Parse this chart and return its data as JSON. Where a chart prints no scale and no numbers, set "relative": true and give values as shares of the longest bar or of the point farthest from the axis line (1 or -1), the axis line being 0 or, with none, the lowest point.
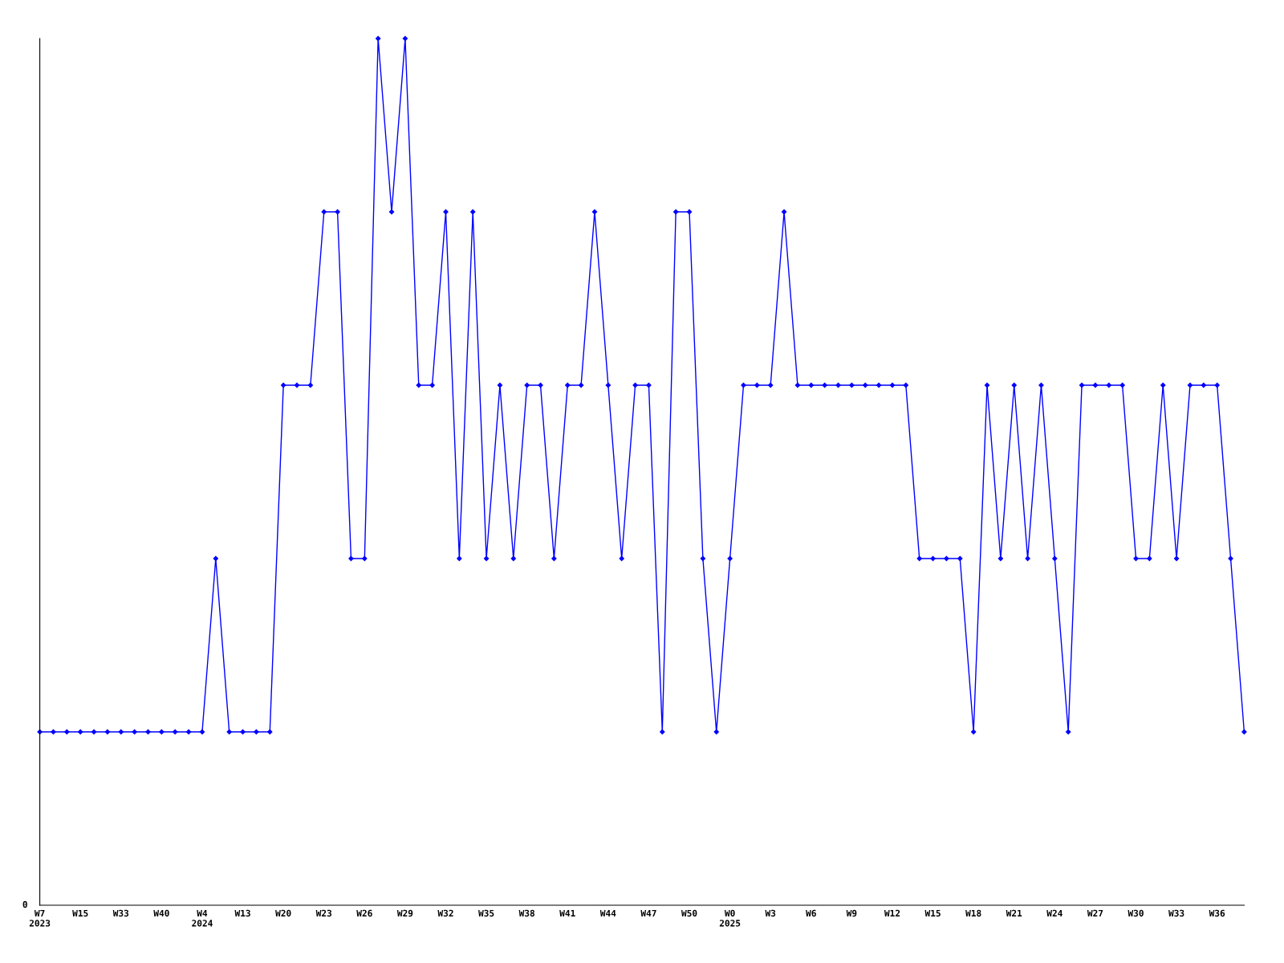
{
  "chart_data": {
    "type": "line",
    "relative": true,
    "marker": "diamond",
    "line_style": "solid",
    "grid": false,
    "legend": false,
    "categories": [
      "W7\n2023",
      null,
      null,
      "W15",
      null,
      null,
      "W33",
      null,
      null,
      "W40",
      null,
      null,
      "W4\n2024",
      null,
      null,
      "W13",
      null,
      null,
      "W20",
      null,
      null,
      "W23",
      null,
      null,
      "W26",
      null,
      null,
      "W29",
      null,
      null,
      "W32",
      null,
      null,
      "W35",
      null,
      null,
      "W38",
      null,
      null,
      "W41",
      null,
      null,
      "W44",
      null,
      null,
      "W47",
      null,
      null,
      "W50",
      null,
      null,
      "W0\n2025",
      null,
      null,
      "W3",
      null,
      null,
      "W6",
      null,
      null,
      "W9",
      null,
      null,
      "W12",
      null,
      null,
      "W15",
      null,
      null,
      "W18",
      null,
      null,
      "W21",
      null,
      null,
      "W24",
      null,
      null,
      "W27",
      null,
      null,
      "W30",
      null,
      null,
      "W33",
      null,
      null,
      "W36",
      null,
      null
    ],
    "series": [
      {
        "color": "#0000ff",
        "values": [
          0.2,
          0.2,
          0.2,
          0.2,
          0.2,
          0.2,
          0.2,
          0.2,
          0.2,
          0.2,
          0.2,
          0.2,
          0.2,
          0.4,
          0.2,
          0.2,
          0.2,
          0.2,
          0.6,
          0.6,
          0.6,
          0.8,
          0.8,
          0.4,
          0.4,
          1.0,
          0.8,
          1.0,
          0.6,
          0.6,
          0.8,
          0.4,
          0.8,
          0.4,
          0.6,
          0.4,
          0.6,
          0.6,
          0.4,
          0.6,
          0.6,
          0.8,
          0.6,
          0.4,
          0.6,
          0.6,
          0.2,
          0.8,
          0.8,
          0.4,
          0.2,
          0.4,
          0.6,
          0.6,
          0.6,
          0.8,
          0.6,
          0.6,
          0.6,
          0.6,
          0.6,
          0.6,
          0.6,
          0.6,
          0.6,
          0.4,
          0.4,
          0.4,
          0.4,
          0.2,
          0.6,
          0.4,
          0.6,
          0.4,
          0.6,
          0.4,
          0.2,
          0.6,
          0.6,
          0.6,
          0.6,
          0.4,
          0.4,
          0.6,
          0.4,
          0.6,
          0.6,
          0.6,
          0.4,
          0.2
        ]
      }
    ],
    "annotations": [
      "0"
    ]
  }
}
